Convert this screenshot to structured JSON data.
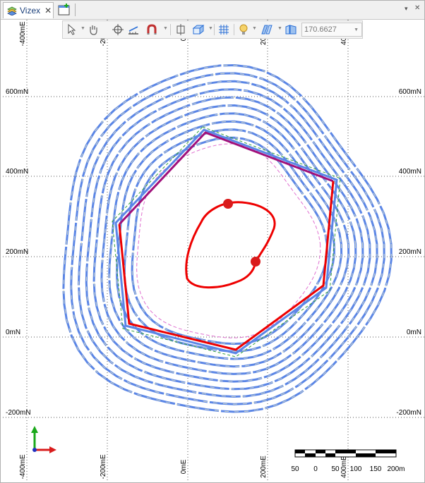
{
  "tab": {
    "title": "Vizex",
    "close_glyph": "✕"
  },
  "tabbar": {
    "pin_glyph": "▾",
    "close_glyph": "✕"
  },
  "toolbar": {
    "rotation_value": "170.6627"
  },
  "grid": {
    "northing_labels": [
      "600mN",
      "400mN",
      "200mN",
      "0mN",
      "-200mN"
    ],
    "easting_labels": [
      "-400mE",
      "-200mE",
      "0mE",
      "200mE",
      "400mE"
    ]
  },
  "scalebar": {
    "labels": [
      "50",
      "0",
      "50",
      "100",
      "150",
      "200m"
    ]
  },
  "colors": {
    "pit_rings": "#5b86e6",
    "pit_centerline": "#e8e8c0",
    "pit_green": "#2e9e3a",
    "limit_pink": "#e070d0",
    "polygon_red": "#ee0000",
    "polygon_purple": "#a0107a",
    "marker": "#d91c1c",
    "grid": "#555555"
  }
}
